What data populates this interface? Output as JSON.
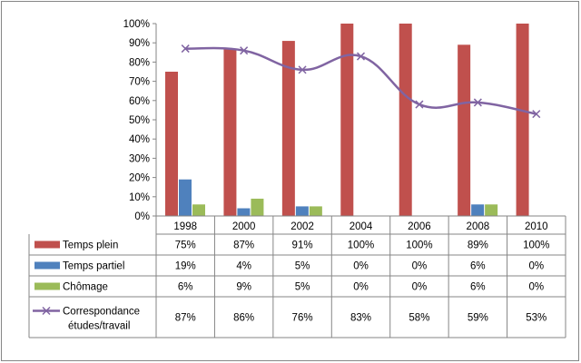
{
  "chart_data": {
    "type": "bar",
    "title": "",
    "categories": [
      "1998",
      "2000",
      "2002",
      "2004",
      "2006",
      "2008",
      "2010"
    ],
    "ylim": [
      0,
      100
    ],
    "yticks": [
      "0%",
      "10%",
      "20%",
      "30%",
      "40%",
      "50%",
      "60%",
      "70%",
      "80%",
      "90%",
      "100%"
    ],
    "grid": false,
    "legend": "data-table",
    "series": [
      {
        "name": "Temps plein",
        "kind": "bar",
        "color": "#C0504D",
        "values": [
          75,
          87,
          91,
          100,
          100,
          89,
          100
        ],
        "labels": [
          "75%",
          "87%",
          "91%",
          "100%",
          "100%",
          "89%",
          "100%"
        ]
      },
      {
        "name": "Temps partiel",
        "kind": "bar",
        "color": "#4F81BD",
        "values": [
          19,
          4,
          5,
          0,
          0,
          6,
          0
        ],
        "labels": [
          "19%",
          "4%",
          "5%",
          "0%",
          "0%",
          "6%",
          "0%"
        ]
      },
      {
        "name": "Chômage",
        "kind": "bar",
        "color": "#9BBB59",
        "values": [
          6,
          9,
          5,
          0,
          0,
          6,
          0
        ],
        "labels": [
          "6%",
          "9%",
          "5%",
          "0%",
          "0%",
          "6%",
          "0%"
        ]
      },
      {
        "name": "Correspondance études/travail",
        "name_lines": [
          "Correspondance",
          "études/travail"
        ],
        "kind": "line",
        "color": "#8064A2",
        "values": [
          87,
          86,
          76,
          83,
          58,
          59,
          53
        ],
        "labels": [
          "87%",
          "86%",
          "76%",
          "83%",
          "58%",
          "59%",
          "53%"
        ]
      }
    ]
  }
}
